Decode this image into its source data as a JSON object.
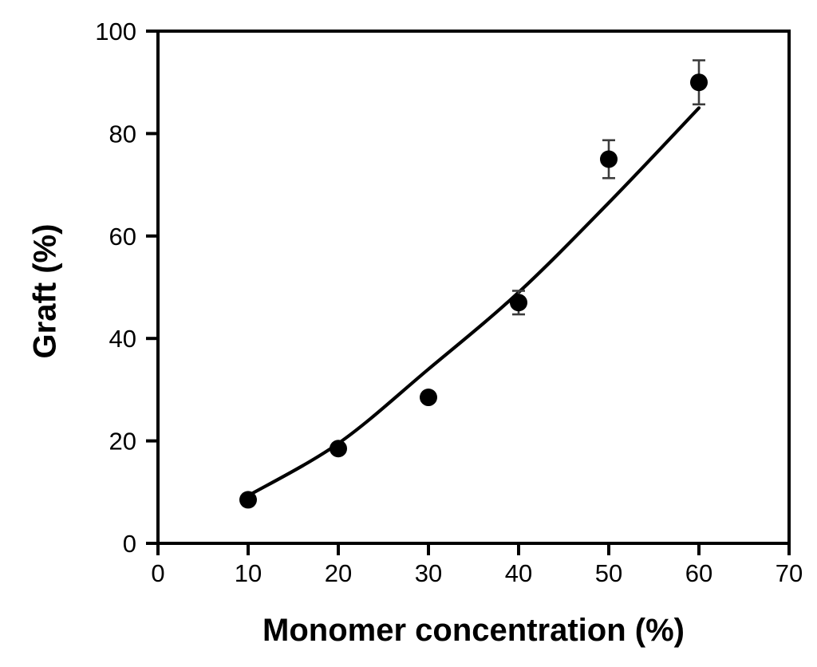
{
  "figure": {
    "background": "#ffffff",
    "text_color": "#000000"
  },
  "chart_data": {
    "type": "scatter",
    "title": "",
    "xlabel": "Monomer concentration (%)",
    "ylabel": "Graft (%)",
    "x": [
      10,
      20,
      30,
      40,
      50,
      60
    ],
    "y": [
      8.5,
      18.5,
      28.5,
      47,
      75,
      90
    ],
    "yerr": [
      0,
      0,
      0,
      2.3,
      3.7,
      4.3
    ],
    "fit_curve_points": [
      [
        10,
        9.3
      ],
      [
        20,
        19.5
      ],
      [
        30,
        34
      ],
      [
        40,
        49
      ],
      [
        50,
        66.5
      ],
      [
        60,
        85
      ]
    ],
    "xlim": [
      0,
      70
    ],
    "ylim": [
      0,
      100
    ],
    "xticks": [
      0,
      10,
      20,
      30,
      40,
      50,
      60,
      70
    ],
    "yticks": [
      0,
      20,
      40,
      60,
      80,
      100
    ],
    "grid": false,
    "legend": "none",
    "frame": "box",
    "tick_direction": "out",
    "marker_shape": "filled-circle",
    "marker_color": "#000000",
    "line_color": "#000000",
    "errorbar_color": "#3c3c3c",
    "axis_color": "#000000"
  }
}
